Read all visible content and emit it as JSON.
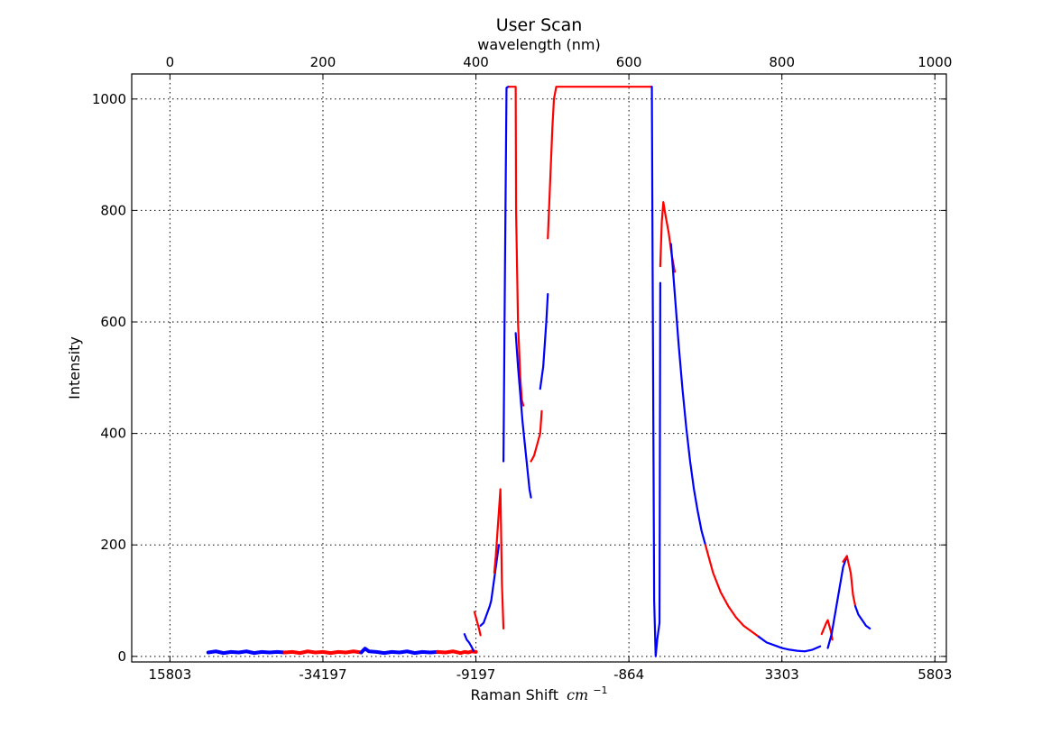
{
  "chart_data": {
    "type": "line",
    "title": "User Scan",
    "xlabel_top": "wavelength (nm)",
    "xlabel_bottom": "Raman Shift",
    "xlabel_bottom_unit": "cm",
    "xlabel_bottom_unit_exp": "−1",
    "ylabel": "Intensity",
    "xlim": [
      -50,
      1015
    ],
    "ylim": [
      -10,
      1045
    ],
    "grid": true,
    "top_ticks": [
      {
        "value": 0,
        "label": "0"
      },
      {
        "value": 200,
        "label": "200"
      },
      {
        "value": 400,
        "label": "400"
      },
      {
        "value": 600,
        "label": "600"
      },
      {
        "value": 800,
        "label": "800"
      },
      {
        "value": 1000,
        "label": "1000"
      }
    ],
    "bottom_ticks": [
      {
        "value": 0,
        "label": "15803"
      },
      {
        "value": 200,
        "label": "-34197"
      },
      {
        "value": 400,
        "label": "-9197"
      },
      {
        "value": 600,
        "label": "-864"
      },
      {
        "value": 800,
        "label": "3303"
      },
      {
        "value": 1000,
        "label": "5803"
      }
    ],
    "y_ticks": [
      {
        "value": 0,
        "label": "0"
      },
      {
        "value": 200,
        "label": "200"
      },
      {
        "value": 400,
        "label": "400"
      },
      {
        "value": 600,
        "label": "600"
      },
      {
        "value": 800,
        "label": "800"
      },
      {
        "value": 1000,
        "label": "1000"
      }
    ],
    "colors": [
      "#0000ff",
      "#ff0000"
    ],
    "series": [
      {
        "x": [
          50,
          60,
          70,
          80,
          90,
          100,
          110,
          120,
          130,
          140,
          150
        ],
        "values": [
          7,
          9,
          6,
          8,
          7,
          9,
          6,
          8,
          7,
          8,
          7
        ]
      },
      {
        "x": [
          150,
          160,
          170,
          180,
          190,
          200,
          210,
          220,
          230,
          240,
          250
        ],
        "values": [
          7,
          8,
          6,
          9,
          7,
          8,
          6,
          8,
          7,
          9,
          7
        ]
      },
      {
        "x": [
          250,
          255,
          260,
          270,
          280,
          290,
          300,
          310,
          320,
          330,
          340,
          350
        ],
        "values": [
          7,
          14,
          9,
          8,
          6,
          8,
          7,
          9,
          6,
          8,
          7,
          8
        ]
      },
      {
        "x": [
          350,
          360,
          370,
          380,
          385,
          390,
          395,
          400
        ],
        "values": [
          8,
          7,
          9,
          6,
          8,
          7,
          9,
          8
        ]
      },
      {
        "x": [
          385,
          388,
          391,
          394,
          397
        ],
        "values": [
          40,
          30,
          25,
          18,
          10
        ]
      },
      {
        "x": [
          398,
          400,
          402,
          404,
          406
        ],
        "values": [
          80,
          70,
          60,
          50,
          38
        ]
      },
      {
        "x": [
          406,
          410,
          414,
          418,
          420,
          424,
          428,
          430
        ],
        "values": [
          55,
          60,
          75,
          90,
          100,
          140,
          180,
          200
        ]
      },
      {
        "x": [
          424,
          426,
          428,
          430,
          432,
          434,
          436
        ],
        "values": [
          150,
          180,
          220,
          260,
          300,
          130,
          50
        ]
      },
      {
        "x": [
          436,
          438,
          440,
          442,
          444
        ],
        "values": [
          350,
          700,
          1020,
          1022,
          1022
        ]
      },
      {
        "x": [
          444,
          448,
          452,
          452.5,
          455,
          458,
          460,
          462
        ],
        "values": [
          1022,
          1022,
          1022,
          800,
          600,
          500,
          460,
          450
        ]
      },
      {
        "x": [
          452,
          455,
          458,
          461,
          464,
          467,
          470,
          472
        ],
        "values": [
          580,
          520,
          470,
          420,
          380,
          340,
          300,
          285
        ]
      },
      {
        "x": [
          472,
          476,
          480,
          484,
          486
        ],
        "values": [
          350,
          360,
          380,
          400,
          440
        ]
      },
      {
        "x": [
          484,
          488,
          492,
          494
        ],
        "values": [
          480,
          520,
          600,
          650
        ]
      },
      {
        "x": [
          494,
          497,
          500,
          502,
          505,
          600,
          630
        ],
        "values": [
          750,
          850,
          950,
          1000,
          1022,
          1022,
          1022
        ]
      },
      {
        "x": [
          630,
          631,
          632,
          633,
          635,
          637,
          638,
          640,
          641
        ],
        "values": [
          1022,
          700,
          400,
          100,
          0,
          30,
          40,
          60,
          670
        ]
      },
      {
        "x": [
          641,
          642,
          643,
          645,
          648,
          652,
          656,
          660
        ],
        "values": [
          700,
          740,
          780,
          815,
          790,
          760,
          720,
          690
        ]
      },
      {
        "x": [
          655,
          660,
          665,
          670,
          675,
          680,
          685,
          690,
          695,
          700
        ],
        "values": [
          740,
          650,
          560,
          480,
          410,
          350,
          300,
          260,
          225,
          200
        ]
      },
      {
        "x": [
          700,
          710,
          720,
          730,
          740,
          750,
          760,
          770
        ],
        "values": [
          200,
          150,
          115,
          90,
          70,
          55,
          45,
          35
        ]
      },
      {
        "x": [
          770,
          780,
          790,
          800,
          810,
          820,
          830,
          840,
          850
        ],
        "values": [
          35,
          25,
          20,
          15,
          12,
          10,
          9,
          12,
          18
        ]
      },
      {
        "x": [
          852,
          855,
          858,
          860,
          862,
          864,
          866
        ],
        "values": [
          40,
          50,
          60,
          65,
          55,
          45,
          30
        ]
      },
      {
        "x": [
          860,
          865,
          870,
          875,
          880,
          885
        ],
        "values": [
          15,
          40,
          80,
          120,
          160,
          180
        ]
      },
      {
        "x": [
          880,
          885,
          890,
          893,
          896
        ],
        "values": [
          170,
          180,
          150,
          110,
          90
        ]
      },
      {
        "x": [
          896,
          900,
          905,
          910,
          915
        ],
        "values": [
          90,
          75,
          65,
          55,
          50
        ]
      }
    ]
  }
}
